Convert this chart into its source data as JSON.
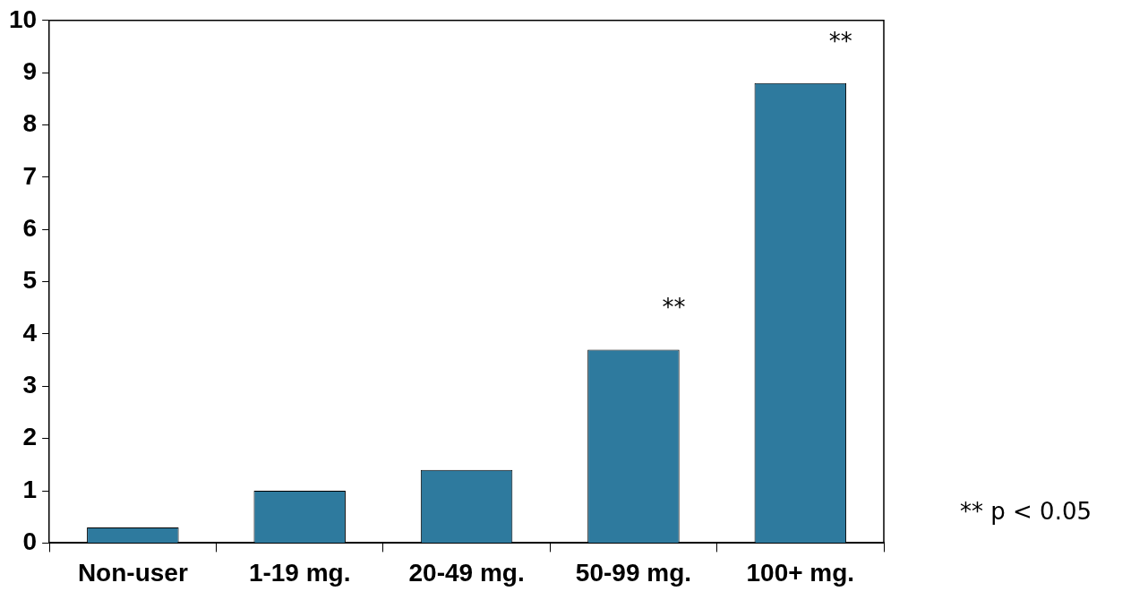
{
  "chart_data": {
    "type": "bar",
    "categories": [
      "Non-user",
      "1-19 mg.",
      "20-49 mg.",
      "50-99 mg.",
      "100+ mg."
    ],
    "values": [
      0.3,
      1.0,
      1.4,
      3.7,
      8.8
    ],
    "color": "#2e7a9e",
    "ylim": [
      0,
      10
    ],
    "yticks": [
      0,
      1,
      2,
      3,
      4,
      5,
      6,
      7,
      8,
      9,
      10
    ],
    "grid": false,
    "legend": false,
    "annotations": [
      "**",
      "**",
      "** p < 0.05"
    ]
  }
}
